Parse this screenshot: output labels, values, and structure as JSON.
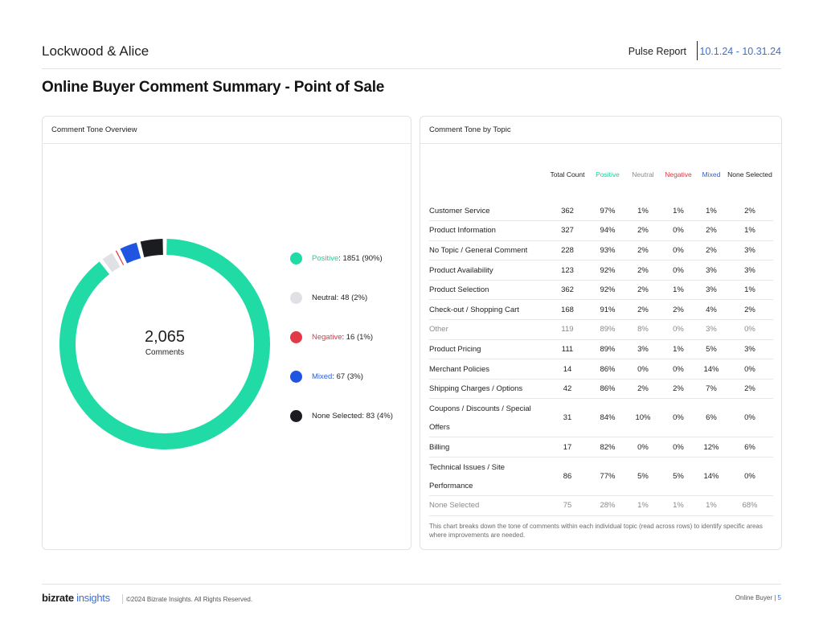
{
  "header": {
    "brand": "Lockwood & Alice",
    "report_label": "Pulse Report",
    "date_range": "10.1.24 - 10.31.24"
  },
  "page_title": "Online Buyer Comment Summary - Point of Sale",
  "overview": {
    "title": "Comment Tone Overview",
    "total": "2,065",
    "total_label": "Comments",
    "legend": [
      {
        "key": "Positive",
        "value": ": 1851 (90%)",
        "color": "#20dba5",
        "label_color": "#1fcf9b"
      },
      {
        "key": "Neutral",
        "value": ": 48 (2%)",
        "color": "#dfe1e5",
        "label_color": "#1f1f1f"
      },
      {
        "key": "Negative",
        "value": ": 16 (1%)",
        "color": "#e53846",
        "label_color": "#d93a48"
      },
      {
        "key": "Mixed",
        "value": ": 67 (3%)",
        "color": "#1f55e0",
        "label_color": "#2e5dd6"
      },
      {
        "key": "None Selected",
        "value": ": 83 (4%)",
        "color": "#1a1c20",
        "label_color": "#1f1f1f"
      }
    ]
  },
  "chart_data": {
    "type": "pie",
    "title": "Comment Tone Overview",
    "center_total": "2,065",
    "center_label": "Comments",
    "categories": [
      "Positive",
      "Neutral",
      "Negative",
      "Mixed",
      "None Selected"
    ],
    "values": [
      1851,
      48,
      16,
      67,
      83
    ],
    "percents": [
      90,
      2,
      1,
      3,
      4
    ],
    "colors": [
      "#20dba5",
      "#dfe1e5",
      "#e53846",
      "#1f55e0",
      "#1a1c20"
    ],
    "legend_position": "right"
  },
  "topics": {
    "title": "Comment Tone by Topic",
    "columns": [
      {
        "label": "",
        "color": "#1f1f1f"
      },
      {
        "label": "Total Count",
        "color": "#1f1f1f"
      },
      {
        "label": "Positive",
        "color": "#1fcf9b"
      },
      {
        "label": "Neutral",
        "color": "#8a8a8a"
      },
      {
        "label": "Negative",
        "color": "#d93a48"
      },
      {
        "label": "Mixed",
        "color": "#2e5dd6"
      },
      {
        "label": "None Selected",
        "color": "#1f1f1f"
      }
    ],
    "rows": [
      {
        "topic": "Customer Service",
        "cells": [
          "362",
          "97%",
          "1%",
          "1%",
          "1%",
          "2%"
        ]
      },
      {
        "topic": "Product Information",
        "cells": [
          "327",
          "94%",
          "2%",
          "0%",
          "2%",
          "1%"
        ]
      },
      {
        "topic": "No Topic / General Comment",
        "cells": [
          "228",
          "93%",
          "2%",
          "0%",
          "2%",
          "3%"
        ]
      },
      {
        "topic": "Product Availability",
        "cells": [
          "123",
          "92%",
          "2%",
          "0%",
          "3%",
          "3%"
        ]
      },
      {
        "topic": "Product Selection",
        "cells": [
          "362",
          "92%",
          "2%",
          "1%",
          "3%",
          "1%"
        ]
      },
      {
        "topic": "Check-out / Shopping Cart",
        "cells": [
          "168",
          "91%",
          "2%",
          "2%",
          "4%",
          "2%"
        ]
      },
      {
        "topic": "Other",
        "cells": [
          "119",
          "89%",
          "8%",
          "0%",
          "3%",
          "0%"
        ],
        "muted": true
      },
      {
        "topic": "Product Pricing",
        "cells": [
          "111",
          "89%",
          "3%",
          "1%",
          "5%",
          "3%"
        ]
      },
      {
        "topic": "Merchant Policies",
        "cells": [
          "14",
          "86%",
          "0%",
          "0%",
          "14%",
          "0%"
        ]
      },
      {
        "topic": "Shipping Charges / Options",
        "cells": [
          "42",
          "86%",
          "2%",
          "2%",
          "7%",
          "2%"
        ]
      },
      {
        "topic": "Coupons / Discounts / Special Offers",
        "cells": [
          "31",
          "84%",
          "10%",
          "0%",
          "6%",
          "0%"
        ],
        "tall": true
      },
      {
        "topic": "Billing",
        "cells": [
          "17",
          "82%",
          "0%",
          "0%",
          "12%",
          "6%"
        ]
      },
      {
        "topic": "Technical Issues / Site Performance",
        "cells": [
          "86",
          "77%",
          "5%",
          "5%",
          "14%",
          "0%"
        ],
        "tall": true
      },
      {
        "topic": "None Selected",
        "cells": [
          "75",
          "28%",
          "1%",
          "1%",
          "1%",
          "68%"
        ],
        "muted": true
      }
    ],
    "footnote": "This chart breaks down the tone of comments within each individual topic (read across rows) to identify specific areas where improvements are needed."
  },
  "footer": {
    "logo_bold": "bizrate",
    "logo_thin": " insights",
    "copyright": "©2024 Bizrate Insights. All Rights Reserved.",
    "section": "Online Buyer",
    "separator": "|",
    "page": "5"
  }
}
